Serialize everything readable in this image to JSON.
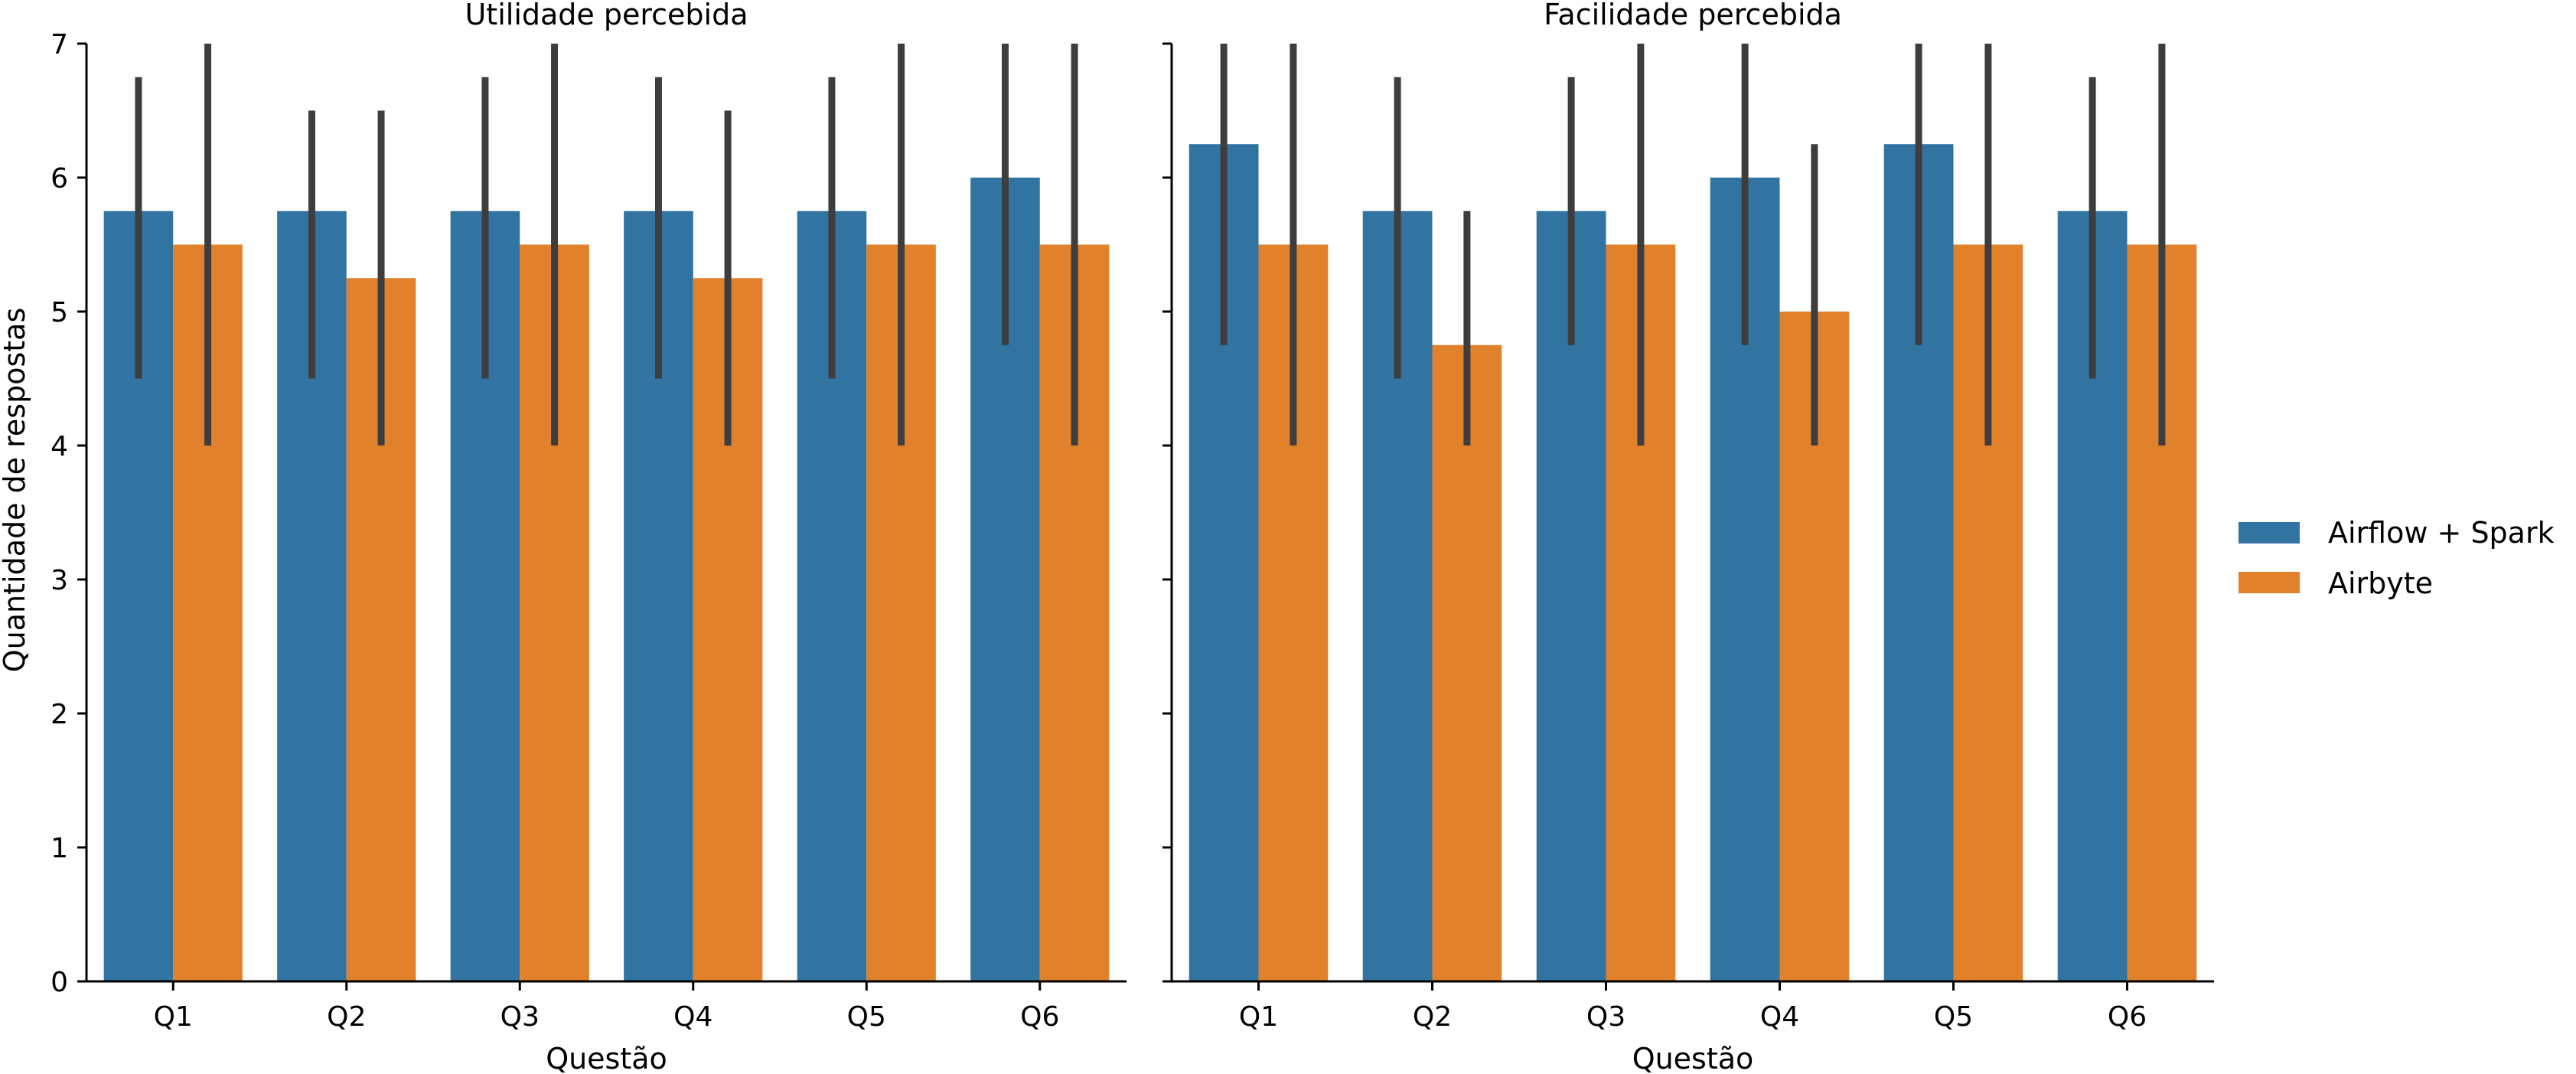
{
  "chart_data": [
    {
      "type": "bar",
      "title": "Utilidade percebida",
      "xlabel": "Questão",
      "ylabel": "Quantidade de respostas",
      "ylim": [
        0,
        7
      ],
      "yticks": [
        0,
        1,
        2,
        3,
        4,
        5,
        6,
        7
      ],
      "categories": [
        "Q1",
        "Q2",
        "Q3",
        "Q4",
        "Q5",
        "Q6"
      ],
      "series": [
        {
          "name": "Airflow + Spark",
          "color": "#3274a1",
          "values": [
            5.75,
            5.75,
            5.75,
            5.75,
            5.75,
            6.0
          ],
          "err_low": [
            4.5,
            4.5,
            4.5,
            4.5,
            4.5,
            4.75
          ],
          "err_high": [
            6.75,
            6.5,
            6.75,
            6.75,
            6.75,
            7.0
          ]
        },
        {
          "name": "Airbyte",
          "color": "#e1812c",
          "values": [
            5.5,
            5.25,
            5.5,
            5.25,
            5.5,
            5.5
          ],
          "err_low": [
            4.0,
            4.0,
            4.0,
            4.0,
            4.0,
            4.0
          ],
          "err_high": [
            7.0,
            6.5,
            7.0,
            6.5,
            7.0,
            7.0
          ]
        }
      ]
    },
    {
      "type": "bar",
      "title": "Facilidade percebida",
      "xlabel": "Questão",
      "ylabel": "",
      "ylim": [
        0,
        7
      ],
      "yticks": [
        0,
        1,
        2,
        3,
        4,
        5,
        6,
        7
      ],
      "categories": [
        "Q1",
        "Q2",
        "Q3",
        "Q4",
        "Q5",
        "Q6"
      ],
      "series": [
        {
          "name": "Airflow + Spark",
          "color": "#3274a1",
          "values": [
            6.25,
            5.75,
            5.75,
            6.0,
            6.25,
            5.75
          ],
          "err_low": [
            4.75,
            4.5,
            4.75,
            4.75,
            4.75,
            4.5
          ],
          "err_high": [
            7.0,
            6.75,
            6.75,
            7.0,
            7.0,
            6.75
          ]
        },
        {
          "name": "Airbyte",
          "color": "#e1812c",
          "values": [
            5.5,
            4.75,
            5.5,
            5.0,
            5.5,
            5.5
          ],
          "err_low": [
            4.0,
            4.0,
            4.0,
            4.0,
            4.0,
            4.0
          ],
          "err_high": [
            7.0,
            5.75,
            7.0,
            6.25,
            7.0,
            7.0
          ]
        }
      ]
    }
  ],
  "legend": {
    "placement": "right",
    "entries": [
      {
        "label": "Airflow + Spark",
        "color": "#3274a1"
      },
      {
        "label": "Airbyte",
        "color": "#e1812c"
      }
    ]
  }
}
